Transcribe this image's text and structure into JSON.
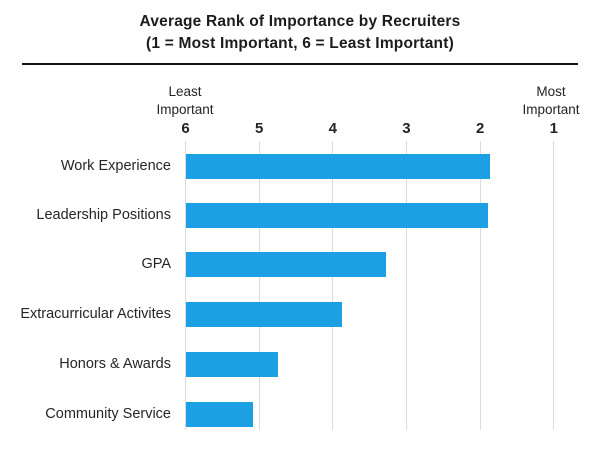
{
  "header": {
    "title_line1": "Average Rank of Importance by Recruiters",
    "title_line2": "(1 = Most Important, 6 = Least Important)"
  },
  "axis": {
    "least": {
      "line1": "Least",
      "line2": "Important"
    },
    "most": {
      "line1": "Most",
      "line2": "Important"
    },
    "tick_labels": [
      "6",
      "5",
      "4",
      "3",
      "2",
      "1"
    ]
  },
  "chart_data": {
    "type": "bar",
    "orientation": "horizontal",
    "title": "Average Rank of Importance by Recruiters",
    "subtitle": "(1 = Most Important, 6 = Least Important)",
    "categories": [
      "Work Experience",
      "Leadership Positions",
      "GPA",
      "Extracurricular Activites",
      "Honors & Awards",
      "Community Service"
    ],
    "values": [
      1.87,
      1.9,
      3.28,
      3.88,
      4.75,
      5.08
    ],
    "value_axis": {
      "min": 1,
      "max": 6,
      "ticks": [
        6,
        5,
        4,
        3,
        2,
        1
      ],
      "direction": "reversed_6_on_left",
      "left_end_label": "Least Important",
      "right_end_label": "Most Important",
      "bars_anchored_at": 6
    },
    "legend": null,
    "grid": true
  },
  "colors": {
    "bar": "#1d9fe4",
    "gridline": "#dcdcdc",
    "divider": "#141414",
    "text": "#242424"
  }
}
